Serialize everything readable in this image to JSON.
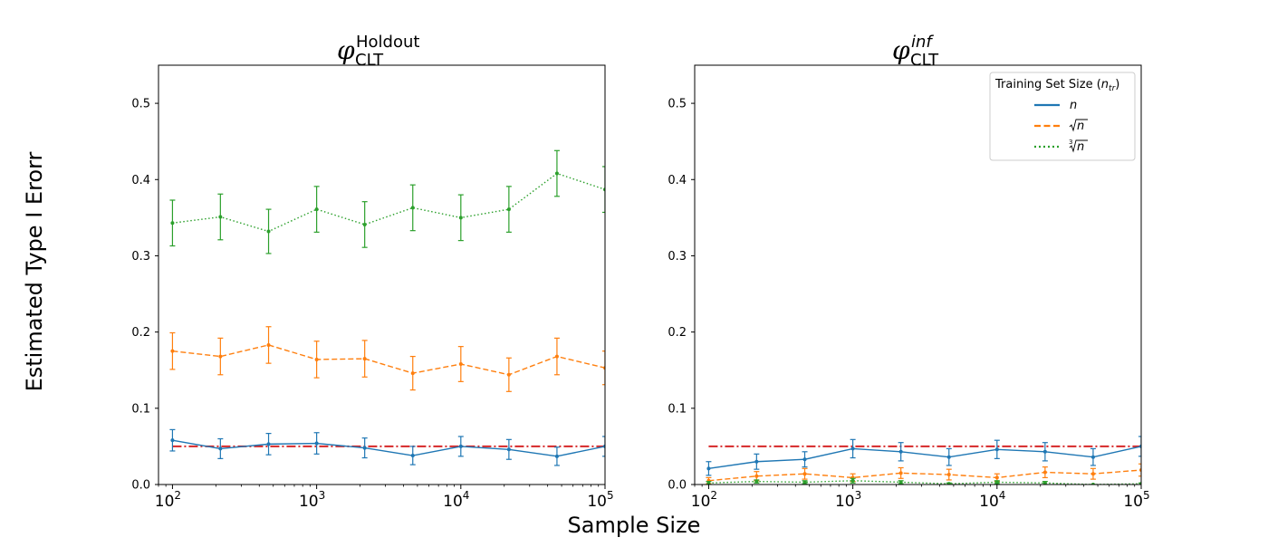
{
  "figure": {
    "ylabel": "Estimated Type I Erorr",
    "xlabel": "Sample Size"
  },
  "chart_data": [
    {
      "type": "line",
      "title_symbol": "φ",
      "title_sup": "Holdout",
      "title_sub": "CLT",
      "xscale": "log",
      "xlim": [
        80,
        100000
      ],
      "ylim": [
        0,
        0.55
      ],
      "yticks": [
        0.0,
        0.1,
        0.2,
        0.3,
        0.4,
        0.5
      ],
      "ytick_labels": [
        "0.0",
        "0.1",
        "0.2",
        "0.3",
        "0.4",
        "0.5"
      ],
      "xtick_exponents": [
        "2",
        "3",
        "4",
        "5"
      ],
      "xticks": [
        100,
        1000,
        10000,
        100000
      ],
      "reference_line": {
        "y": 0.05,
        "color": "#d62728"
      },
      "x": [
        100,
        215,
        464,
        1000,
        2154,
        4642,
        10000,
        21544,
        46416,
        100000
      ],
      "series": [
        {
          "key": "n",
          "color": "#1f77b4",
          "dash": "solid",
          "values": [
            0.058,
            0.047,
            0.053,
            0.054,
            0.048,
            0.038,
            0.05,
            0.046,
            0.037,
            0.05
          ],
          "err": [
            0.014,
            0.013,
            0.014,
            0.014,
            0.013,
            0.012,
            0.013,
            0.013,
            0.012,
            0.013
          ]
        },
        {
          "key": "sqrt",
          "color": "#ff7f0e",
          "dash": "dashed",
          "values": [
            0.175,
            0.168,
            0.183,
            0.164,
            0.165,
            0.146,
            0.158,
            0.144,
            0.168,
            0.153
          ],
          "err": [
            0.024,
            0.024,
            0.024,
            0.024,
            0.024,
            0.022,
            0.023,
            0.022,
            0.024,
            0.022
          ]
        },
        {
          "key": "cbrt",
          "color": "#2ca02c",
          "dash": "dotted",
          "values": [
            0.343,
            0.351,
            0.332,
            0.361,
            0.341,
            0.363,
            0.35,
            0.361,
            0.408,
            0.387
          ],
          "err": [
            0.03,
            0.03,
            0.029,
            0.03,
            0.03,
            0.03,
            0.03,
            0.03,
            0.03,
            0.03
          ]
        }
      ]
    },
    {
      "type": "line",
      "title_symbol": "φ",
      "title_sup": "inf",
      "title_sub": "CLT",
      "xscale": "log",
      "xlim": [
        80,
        100000
      ],
      "ylim": [
        0,
        0.55
      ],
      "yticks": [
        0.0,
        0.1,
        0.2,
        0.3,
        0.4,
        0.5
      ],
      "ytick_labels": [
        "0.0",
        "0.1",
        "0.2",
        "0.3",
        "0.4",
        "0.5"
      ],
      "xtick_exponents": [
        "2",
        "3",
        "4",
        "5"
      ],
      "xticks": [
        100,
        1000,
        10000,
        100000
      ],
      "reference_line": {
        "y": 0.05,
        "color": "#d62728"
      },
      "x": [
        100,
        215,
        464,
        1000,
        2154,
        4642,
        10000,
        21544,
        46416,
        100000
      ],
      "series": [
        {
          "key": "n",
          "color": "#1f77b4",
          "dash": "solid",
          "values": [
            0.021,
            0.03,
            0.033,
            0.047,
            0.043,
            0.036,
            0.046,
            0.043,
            0.036,
            0.05
          ],
          "err": [
            0.009,
            0.01,
            0.01,
            0.012,
            0.012,
            0.011,
            0.012,
            0.012,
            0.011,
            0.013
          ]
        },
        {
          "key": "sqrt",
          "color": "#ff7f0e",
          "dash": "dashed",
          "values": [
            0.005,
            0.011,
            0.014,
            0.009,
            0.015,
            0.013,
            0.009,
            0.016,
            0.014,
            0.019
          ],
          "err": [
            0.004,
            0.006,
            0.007,
            0.005,
            0.007,
            0.007,
            0.005,
            0.007,
            0.007,
            0.008
          ]
        },
        {
          "key": "cbrt",
          "color": "#2ca02c",
          "dash": "dotted",
          "values": [
            0.002,
            0.004,
            0.003,
            0.005,
            0.003,
            0.001,
            0.003,
            0.002,
            0.0,
            0.001
          ],
          "err": [
            0.002,
            0.002,
            0.002,
            0.003,
            0.002,
            0.001,
            0.002,
            0.002,
            0.0,
            0.001
          ]
        }
      ]
    }
  ],
  "legend": {
    "title_text": "Training Set Size (",
    "title_var": "n",
    "title_sub": "tr",
    "title_close": ")",
    "placement": "top-right of right panel",
    "entries": [
      {
        "key": "n",
        "label_var": "n",
        "color": "#1f77b4",
        "dash": "solid"
      },
      {
        "key": "sqrt",
        "label_var": "n",
        "color": "#ff7f0e",
        "dash": "dashed"
      },
      {
        "key": "cbrt",
        "label_var": "n",
        "color": "#2ca02c",
        "dash": "dotted"
      }
    ]
  }
}
